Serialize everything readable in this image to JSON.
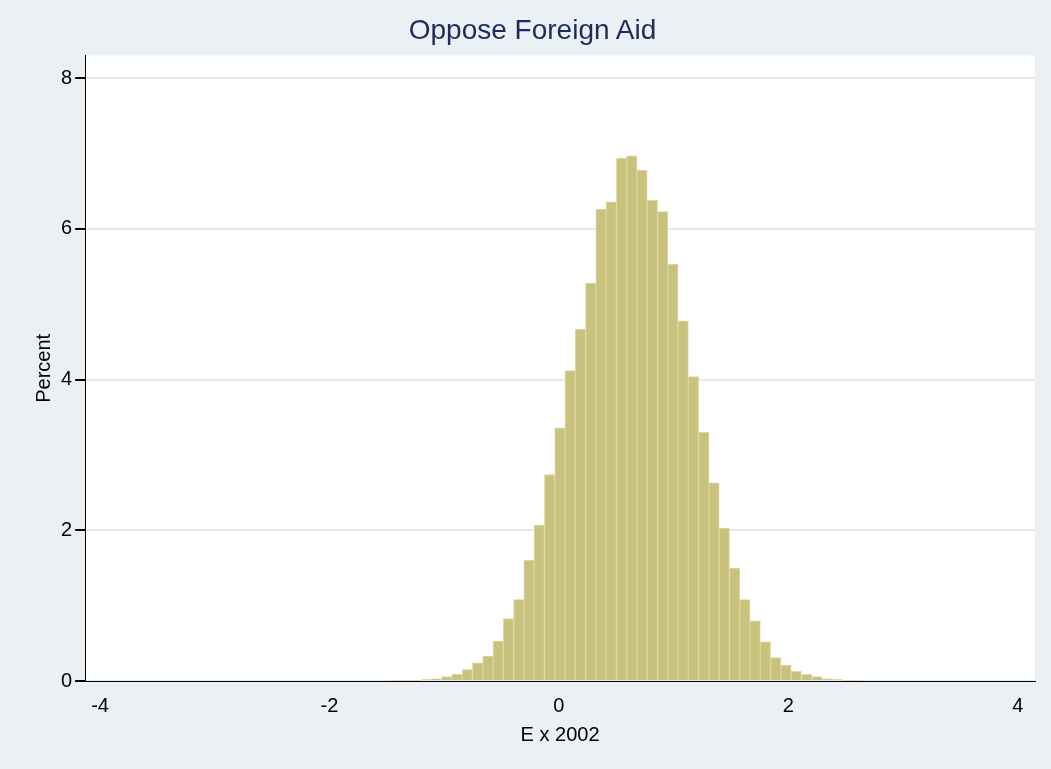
{
  "chart_data": {
    "type": "histogram",
    "title": "Oppose Foreign Aid",
    "xlabel": "E x 2002",
    "ylabel": "Percent",
    "bins": [
      -1.47,
      -1.38,
      -1.291,
      -1.201,
      -1.112,
      -1.022,
      -0.932,
      -0.843,
      -0.753,
      -0.664,
      -0.574,
      -0.484,
      -0.395,
      -0.305,
      -0.216,
      -0.126,
      -0.036,
      0.053,
      0.143,
      0.232,
      0.322,
      0.412,
      0.501,
      0.591,
      0.68,
      0.77,
      0.86,
      0.949,
      1.039,
      1.128,
      1.218,
      1.308,
      1.397,
      1.487,
      1.576,
      1.666,
      1.756,
      1.845,
      1.935,
      2.024,
      2.114,
      2.204,
      2.293,
      2.383,
      2.472,
      2.562,
      2.652
    ],
    "values": [
      0.01,
      0.01,
      0.01,
      0.02,
      0.03,
      0.06,
      0.09,
      0.15,
      0.24,
      0.33,
      0.53,
      0.83,
      1.08,
      1.6,
      2.07,
      2.74,
      3.36,
      4.12,
      4.67,
      5.28,
      6.26,
      6.36,
      6.94,
      6.97,
      6.78,
      6.38,
      6.23,
      5.53,
      4.78,
      4.04,
      3.3,
      2.63,
      2.03,
      1.5,
      1.08,
      0.8,
      0.52,
      0.31,
      0.21,
      0.13,
      0.09,
      0.06,
      0.03,
      0.02,
      0.01,
      0.01
    ],
    "color": "#c9c27c",
    "xlim": [
      -4.13,
      4.15
    ],
    "xticks": [
      -4,
      -2,
      0,
      2,
      4
    ],
    "ylim": [
      0,
      8.3
    ],
    "yticks": [
      0,
      2,
      4,
      6,
      8
    ],
    "grid": "y",
    "legend": false
  }
}
